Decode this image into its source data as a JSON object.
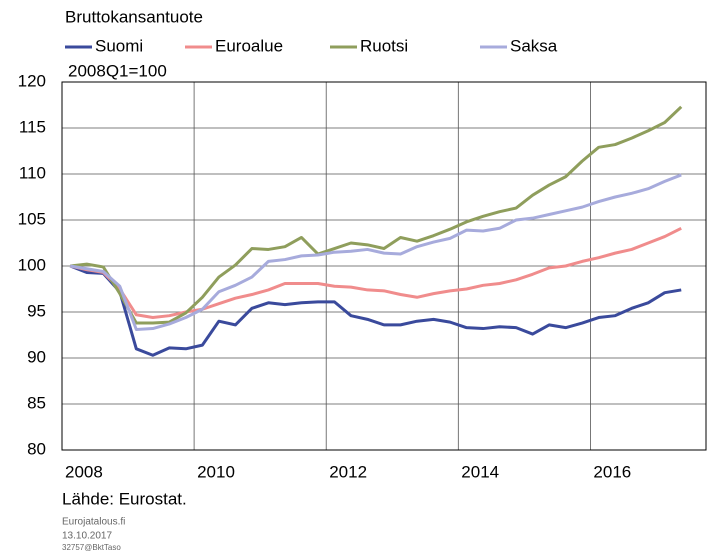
{
  "chart_data": {
    "type": "line",
    "subtitle": "Bruttokansantuote",
    "note": "2008Q1=100",
    "source": "Lähde: Eurostat.",
    "footer": [
      "Eurojatalous.fi",
      "13.10.2017",
      "32757@BktTaso"
    ],
    "x": [
      2008.125,
      2008.375,
      2008.625,
      2008.875,
      2009.125,
      2009.375,
      2009.625,
      2009.875,
      2010.125,
      2010.375,
      2010.625,
      2010.875,
      2011.125,
      2011.375,
      2011.625,
      2011.875,
      2012.125,
      2012.375,
      2012.625,
      2012.875,
      2013.125,
      2013.375,
      2013.625,
      2013.875,
      2014.125,
      2014.375,
      2014.625,
      2014.875,
      2015.125,
      2015.375,
      2015.625,
      2015.875,
      2016.125,
      2016.375,
      2016.625,
      2016.875,
      2017.125,
      2017.375
    ],
    "series": [
      {
        "name": "Suomi",
        "color": "#3a4a9c",
        "values": [
          100,
          99.3,
          99.2,
          97.2,
          91,
          90.3,
          91.1,
          91,
          91.4,
          94,
          93.6,
          95.4,
          96,
          95.8,
          96,
          96.1,
          96.1,
          94.6,
          94.2,
          93.6,
          93.6,
          94,
          94.2,
          93.9,
          93.3,
          93.2,
          93.4,
          93.3,
          92.6,
          93.6,
          93.3,
          93.8,
          94.4,
          94.6,
          95.4,
          96,
          97.1,
          97.4
        ]
      },
      {
        "name": "Euroalue",
        "color": "#f08c8c",
        "values": [
          100,
          99.6,
          99.3,
          97.5,
          94.7,
          94.4,
          94.6,
          95,
          95.3,
          95.9,
          96.5,
          96.9,
          97.4,
          98.1,
          98.1,
          98.1,
          97.8,
          97.7,
          97.4,
          97.3,
          96.9,
          96.6,
          97,
          97.3,
          97.5,
          97.9,
          98.1,
          98.5,
          99.1,
          99.8,
          100,
          100.5,
          100.9,
          101.4,
          101.8,
          102.5,
          103.2,
          104.1
        ]
      },
      {
        "name": "Ruotsi",
        "color": "#8f9e5c",
        "values": [
          100,
          100.2,
          99.9,
          97,
          93.8,
          93.8,
          93.9,
          94.9,
          96.6,
          98.8,
          100.1,
          101.9,
          101.8,
          102.1,
          103.1,
          101.3,
          101.9,
          102.5,
          102.3,
          101.9,
          103.1,
          102.7,
          103.3,
          104,
          104.8,
          105.4,
          105.9,
          106.3,
          107.7,
          108.8,
          109.7,
          111.4,
          112.9,
          113.2,
          113.9,
          114.7,
          115.6,
          117.3
        ]
      },
      {
        "name": "Saksa",
        "color": "#a7abdc",
        "values": [
          100,
          99.7,
          99.4,
          97.8,
          93.1,
          93.2,
          93.7,
          94.4,
          95.3,
          97.2,
          97.9,
          98.8,
          100.5,
          100.7,
          101.1,
          101.2,
          101.5,
          101.6,
          101.8,
          101.4,
          101.3,
          102.1,
          102.6,
          103,
          103.9,
          103.8,
          104.1,
          105,
          105.2,
          105.6,
          106,
          106.4,
          107,
          107.5,
          107.9,
          108.4,
          109.2,
          109.9
        ]
      }
    ],
    "xlim": [
      2008,
      2017.75
    ],
    "xticks": [
      2008,
      2010,
      2012,
      2014,
      2016
    ],
    "ylim": [
      80,
      120
    ],
    "yticks": [
      80,
      85,
      90,
      95,
      100,
      105,
      110,
      115,
      120
    ],
    "grid": true
  }
}
